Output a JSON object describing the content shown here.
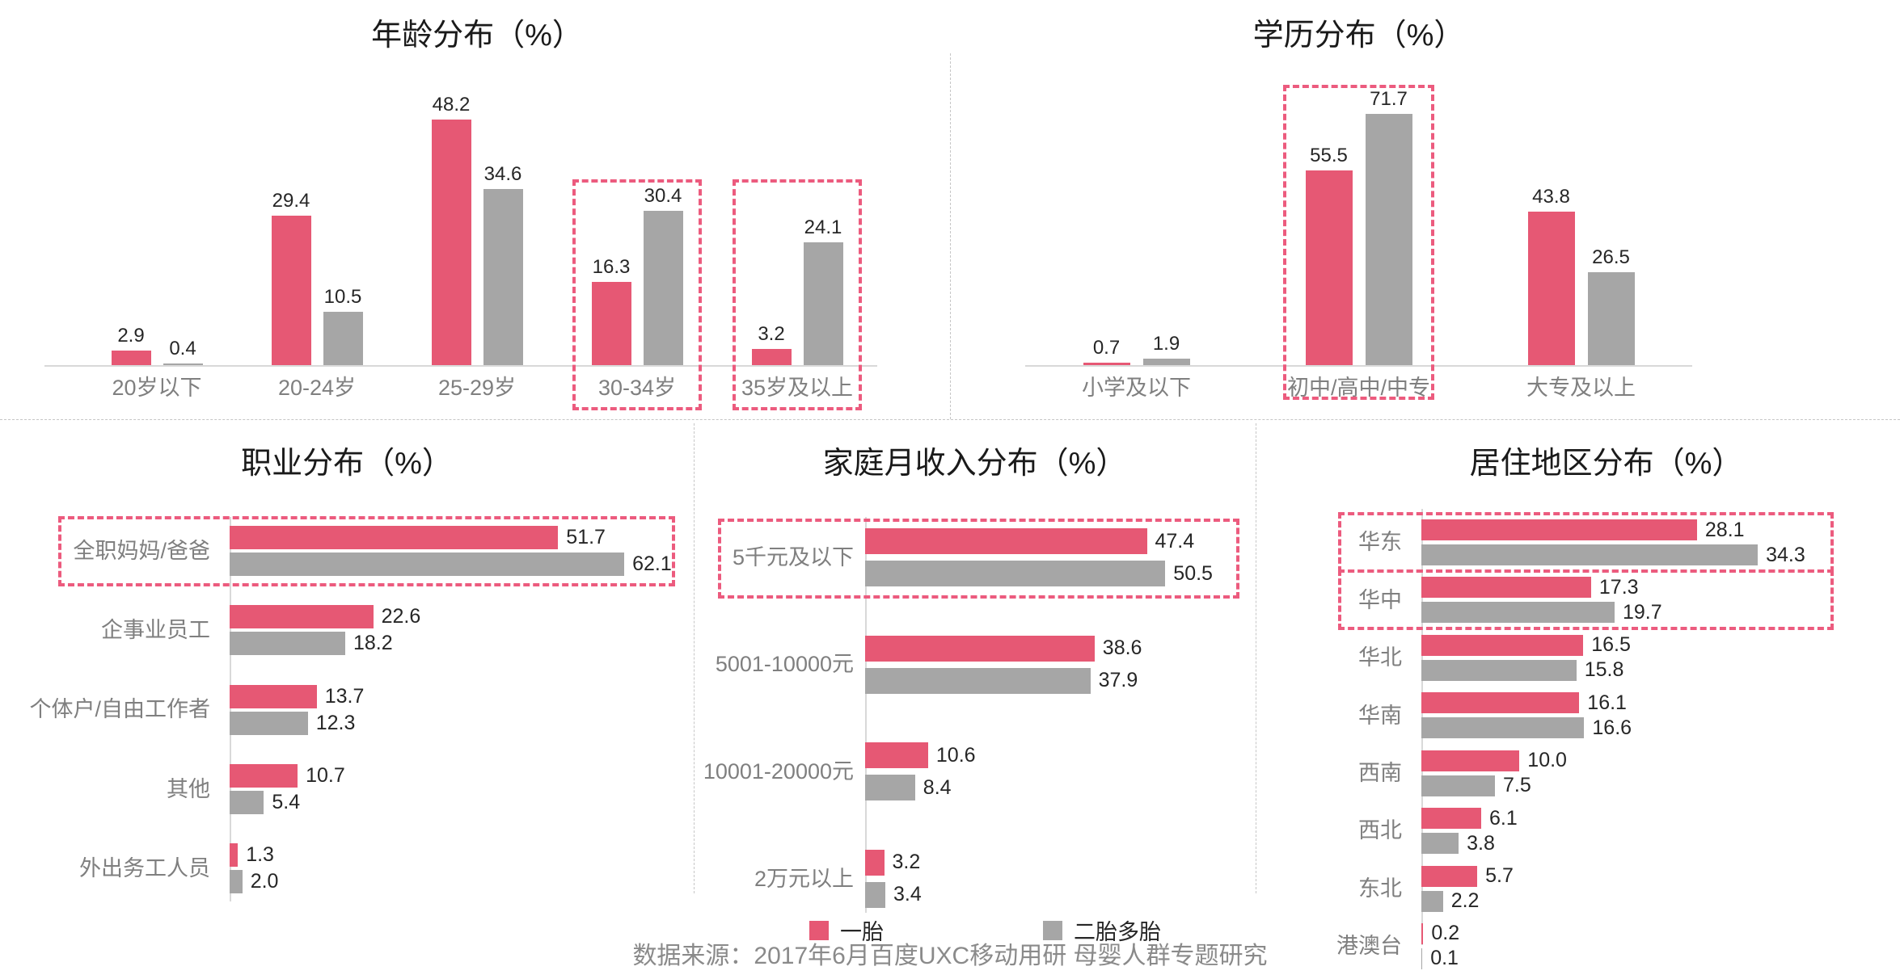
{
  "footer": {
    "source_note": "数据来源：2017年6月百度UXC移动用研 母婴人群专题研究"
  },
  "legend": {
    "items": [
      {
        "label": "一胎",
        "color": "#e65874"
      },
      {
        "label": "二胎多胎",
        "color": "#a6a6a6"
      }
    ]
  },
  "colors": {
    "first_child_bar": "#e65874",
    "second_child_bar": "#a6a6a6",
    "highlight_box": "#ec5b7e",
    "axis_line": "#d9d9d9",
    "value_text": "#262626",
    "category_text": "#7f7f7f",
    "title_text": "#1a1a1a",
    "source_text": "#8a8a8a"
  },
  "chart_data": [
    {
      "type": "bar",
      "orientation": "vertical",
      "title": "年龄分布（%）",
      "categories": [
        "20岁以下",
        "20-24岁",
        "25-29岁",
        "30-34岁",
        "35岁及以上"
      ],
      "series": [
        {
          "name": "一胎",
          "color": "#e65874",
          "values": [
            2.9,
            29.4,
            48.2,
            16.3,
            3.2
          ]
        },
        {
          "name": "二胎多胎",
          "color": "#a6a6a6",
          "values": [
            0.4,
            10.5,
            34.6,
            30.4,
            24.1
          ]
        }
      ],
      "highlighted_categories": [
        "30-34岁",
        "35岁及以上"
      ],
      "value_labels": true,
      "grid": false,
      "ylim": [
        0,
        60
      ]
    },
    {
      "type": "bar",
      "orientation": "vertical",
      "title": "学历分布（%）",
      "categories": [
        "小学及以下",
        "初中/高中/中专",
        "大专及以上"
      ],
      "series": [
        {
          "name": "一胎",
          "color": "#e65874",
          "values": [
            0.7,
            55.5,
            43.8
          ]
        },
        {
          "name": "二胎多胎",
          "color": "#a6a6a6",
          "values": [
            1.9,
            71.7,
            26.5
          ]
        }
      ],
      "highlighted_categories": [
        "初中/高中/中专"
      ],
      "value_labels": true,
      "grid": false,
      "ylim": [
        0,
        87
      ]
    },
    {
      "type": "bar",
      "orientation": "horizontal",
      "title": "职业分布（%）",
      "categories": [
        "全职妈妈/爸爸",
        "企事业员工",
        "个体户/自由工作者",
        "其他",
        "外出务工人员"
      ],
      "series": [
        {
          "name": "一胎",
          "color": "#e65874",
          "values": [
            51.7,
            22.6,
            13.7,
            10.7,
            1.3
          ]
        },
        {
          "name": "二胎多胎",
          "color": "#a6a6a6",
          "values": [
            62.1,
            18.2,
            12.3,
            5.4,
            2.0
          ]
        }
      ],
      "highlighted_categories": [
        "全职妈妈/爸爸"
      ],
      "value_labels": true,
      "grid": false,
      "xlim": [
        0,
        71
      ]
    },
    {
      "type": "bar",
      "orientation": "horizontal",
      "title": "家庭月收入分布（%）",
      "categories": [
        "5千元及以下",
        "5001-10000元",
        "10001-20000元",
        "2万元以上"
      ],
      "series": [
        {
          "name": "一胎",
          "color": "#e65874",
          "values": [
            47.4,
            38.6,
            10.6,
            3.2
          ]
        },
        {
          "name": "二胎多胎",
          "color": "#a6a6a6",
          "values": [
            50.5,
            37.9,
            8.4,
            3.4
          ]
        }
      ],
      "highlighted_categories": [
        "5千元及以下"
      ],
      "value_labels": true,
      "grid": false,
      "xlim": [
        0,
        54
      ]
    },
    {
      "type": "bar",
      "orientation": "horizontal",
      "title": "居住地区分布（%）",
      "categories": [
        "华东",
        "华中",
        "华北",
        "华南",
        "西南",
        "西北",
        "东北",
        "港澳台"
      ],
      "series": [
        {
          "name": "一胎",
          "color": "#e65874",
          "values": [
            28.1,
            17.3,
            16.5,
            16.1,
            10.0,
            6.1,
            5.7,
            0.2
          ]
        },
        {
          "name": "二胎多胎",
          "color": "#a6a6a6",
          "values": [
            34.3,
            19.7,
            15.8,
            16.6,
            7.5,
            3.8,
            2.2,
            0.1
          ]
        }
      ],
      "highlighted_categories": [
        "华东",
        "华中"
      ],
      "value_labels": true,
      "grid": false,
      "xlim": [
        0,
        38
      ]
    }
  ]
}
